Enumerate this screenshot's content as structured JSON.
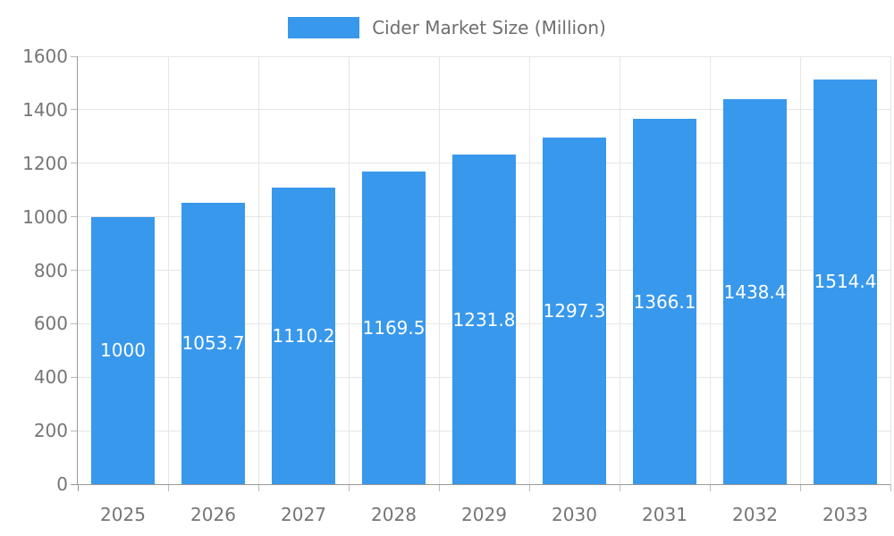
{
  "legend": {
    "label": "Cider Market Size (Million)"
  },
  "colors": {
    "bar": "#3898ec",
    "grid": "#e6e6e6",
    "axis": "#999999",
    "tick": "#bbbbbb",
    "axis_text": "#757575",
    "legend_text": "#6e6e6e",
    "bar_label_text": "#ffffff",
    "background": "#ffffff"
  },
  "chart_data": {
    "type": "bar",
    "title": "Cider Market Size (Million)",
    "series_name": "Cider Market Size (Million)",
    "categories": [
      "2025",
      "2026",
      "2027",
      "2028",
      "2029",
      "2030",
      "2031",
      "2032",
      "2033"
    ],
    "values": [
      1000,
      1053.7,
      1110.2,
      1169.5,
      1231.8,
      1297.3,
      1366.1,
      1438.4,
      1514.4
    ],
    "value_labels": [
      "1000",
      "1053.7",
      "1110.2",
      "1169.5",
      "1231.8",
      "1297.3",
      "1366.1",
      "1438.4",
      "1514.4"
    ],
    "xlabel": "",
    "ylabel": "",
    "ylim": [
      0,
      1600
    ],
    "y_ticks": [
      0,
      200,
      400,
      600,
      800,
      1000,
      1200,
      1400,
      1600
    ],
    "grid": true,
    "legend_position": "top-center",
    "bar_value_labels": "inside-center"
  }
}
